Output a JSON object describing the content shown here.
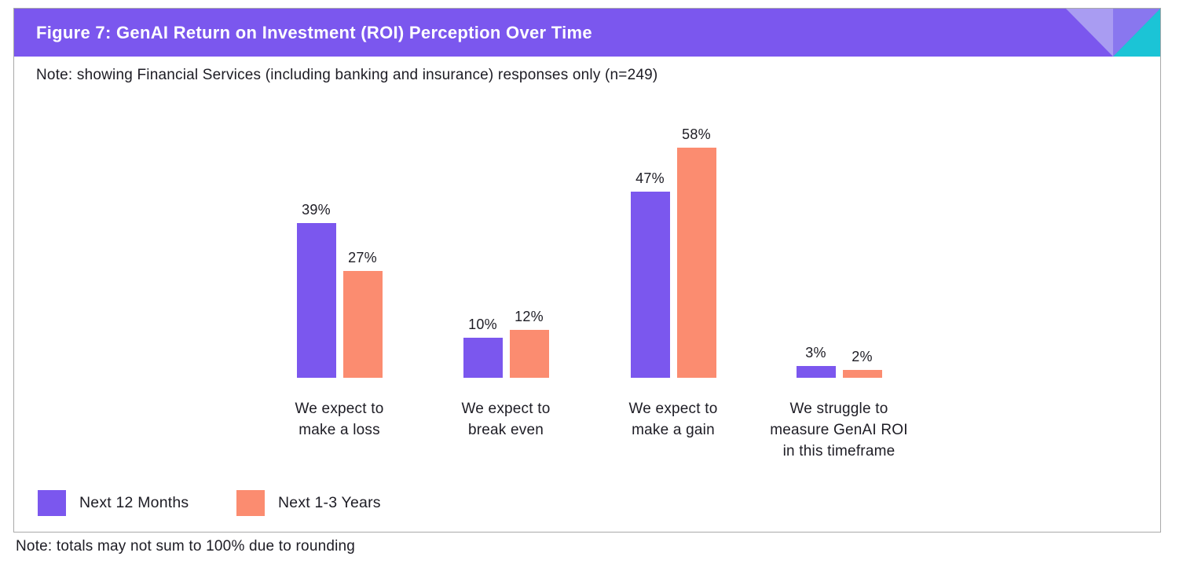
{
  "header": {
    "title": "Figure 7: GenAI Return on Investment (ROI) Perception Over Time"
  },
  "notes": {
    "top": "Note: showing Financial Services (including banking and insurance) responses only (n=249)",
    "bottom": "Note: totals may not sum to 100% due to rounding"
  },
  "colors": {
    "header_bg": "#7b57ee",
    "series_next_12_months": "#7b57ee",
    "series_next_1_3_years": "#fb8c70",
    "accent_light_purple": "#a99cf2",
    "accent_mid_purple": "#8977ef",
    "accent_teal": "#1bc4d6",
    "border": "#a9a9a9",
    "text": "#1d1c24",
    "title_text": "#ffffff"
  },
  "legend": {
    "items": [
      {
        "label": "Next 12 Months",
        "color": "#7b57ee"
      },
      {
        "label": "Next 1-3 Years",
        "color": "#fb8c70"
      }
    ]
  },
  "chart_data": {
    "type": "bar",
    "title": "Figure 7: GenAI Return on Investment (ROI) Perception Over Time",
    "categories": [
      "We expect to make a loss",
      "We expect to break even",
      "We expect to make a gain",
      "We struggle to measure GenAI ROI in this timeframe"
    ],
    "category_lines": [
      [
        "We expect to",
        "make a loss"
      ],
      [
        "We expect to",
        "break even"
      ],
      [
        "We expect to",
        "make a gain"
      ],
      [
        "We struggle to",
        "measure GenAI ROI",
        "in this timeframe"
      ]
    ],
    "series": [
      {
        "name": "Next 12 Months",
        "color": "#7b57ee",
        "values": [
          39,
          10,
          47,
          3
        ]
      },
      {
        "name": "Next 1-3 Years",
        "color": "#fb8c70",
        "values": [
          27,
          12,
          58,
          2
        ]
      }
    ],
    "value_suffix": "%",
    "ylim": [
      0,
      60
    ],
    "grid": false,
    "axis_lines": false,
    "data_labels": true,
    "legend_position": "bottom-left"
  }
}
